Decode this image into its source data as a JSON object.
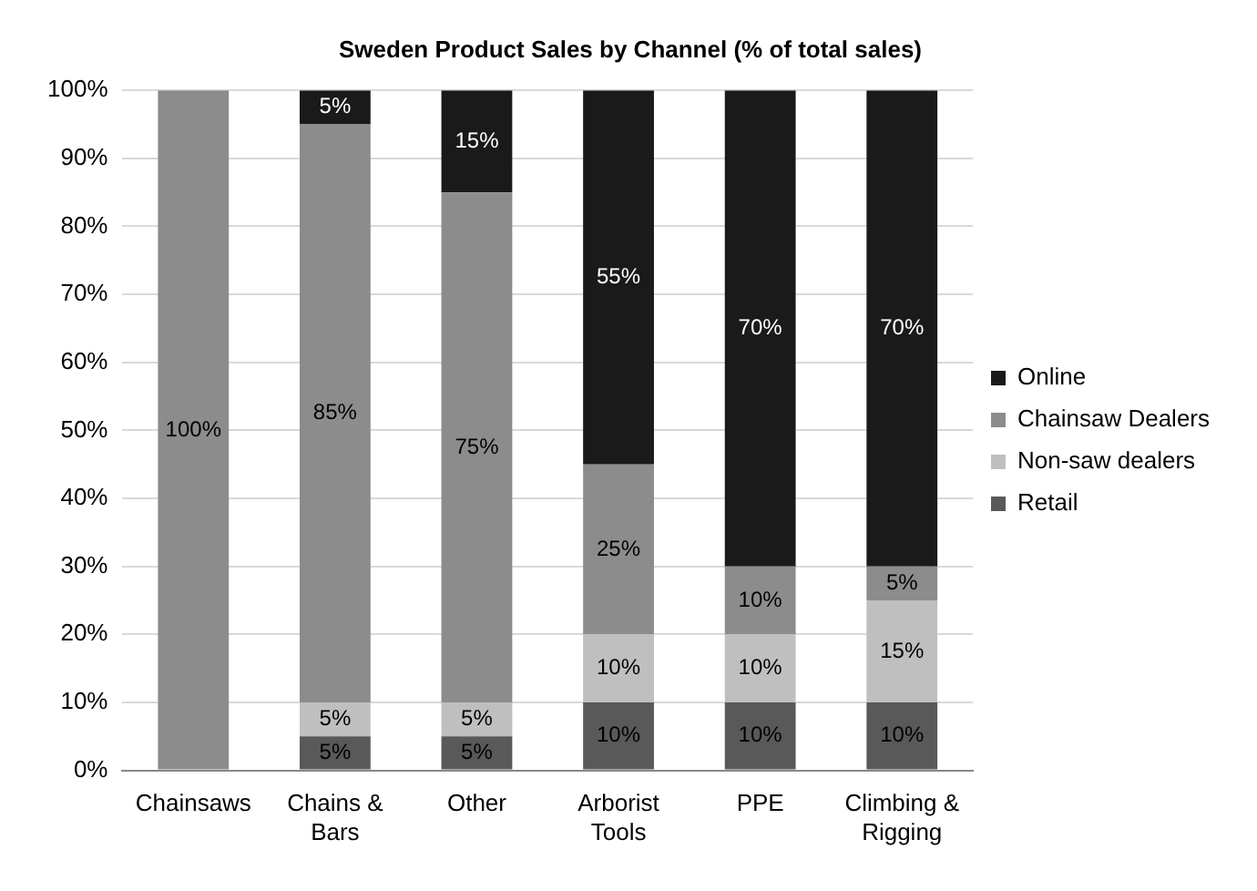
{
  "chart_data": {
    "type": "bar",
    "title": "Sweden Product Sales by Channel (% of total sales)",
    "stacked": true,
    "categories": [
      "Chainsaws",
      "Chains & Bars",
      "Other",
      "Arborist Tools",
      "PPE",
      "Climbing & Rigging"
    ],
    "series": [
      {
        "name": "Retail",
        "color": "#595959",
        "values": [
          0,
          5,
          5,
          10,
          10,
          10
        ],
        "value_labels": [
          null,
          "5%",
          "5%",
          "10%",
          "10%",
          "10%"
        ]
      },
      {
        "name": "Non-saw dealers",
        "color": "#bfbfbf",
        "values": [
          0,
          5,
          5,
          10,
          10,
          15
        ],
        "value_labels": [
          null,
          "5%",
          "5%",
          "10%",
          "10%",
          "15%"
        ]
      },
      {
        "name": "Chainsaw Dealers",
        "color": "#8c8c8c",
        "values": [
          100,
          85,
          75,
          25,
          10,
          5
        ],
        "value_labels": [
          "100%",
          "85%",
          "75%",
          "25%",
          "10%",
          "5%"
        ]
      },
      {
        "name": "Online",
        "color": "#1a1a1a",
        "values": [
          0,
          5,
          15,
          55,
          70,
          70
        ],
        "value_labels": [
          null,
          "5%",
          "15%",
          "55%",
          "70%",
          "70%"
        ]
      }
    ],
    "ylim": [
      0,
      100
    ],
    "yticks": [
      {
        "value": 0,
        "label": "0%"
      },
      {
        "value": 10,
        "label": "10%"
      },
      {
        "value": 20,
        "label": "20%"
      },
      {
        "value": 30,
        "label": "30%"
      },
      {
        "value": 40,
        "label": "40%"
      },
      {
        "value": 50,
        "label": "50%"
      },
      {
        "value": 60,
        "label": "60%"
      },
      {
        "value": 70,
        "label": "70%"
      },
      {
        "value": 80,
        "label": "80%"
      },
      {
        "value": 90,
        "label": "90%"
      },
      {
        "value": 100,
        "label": "100%"
      }
    ],
    "grid": "y",
    "legend": "right"
  }
}
